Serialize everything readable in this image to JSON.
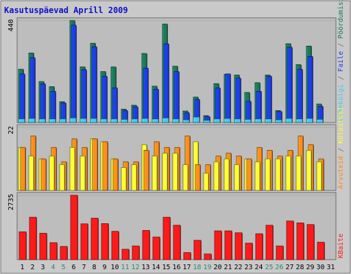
{
  "chart_data": {
    "type": "bar",
    "title": "Kasutuspäevad Aprill 2009",
    "categories": [
      "1",
      "2",
      "3",
      "4",
      "5",
      "6",
      "7",
      "8",
      "9",
      "10",
      "11",
      "12",
      "13",
      "14",
      "15",
      "16",
      "17",
      "18",
      "19",
      "20",
      "21",
      "22",
      "23",
      "24",
      "25",
      "26",
      "27",
      "28",
      "29",
      "30",
      "31"
    ],
    "weekend_days": [
      "4",
      "5",
      "11",
      "12",
      "18",
      "19",
      "25",
      "26"
    ],
    "panels": [
      {
        "name": "top",
        "ymax_label": "440",
        "ylim": [
          0,
          440
        ],
        "series": [
          {
            "name": "Pöördumisi",
            "color": "#1a7a5a",
            "values": [
              230,
              300,
              177,
              155,
              90,
              440,
              240,
              342,
              220,
              240,
              58,
              75,
              298,
              157,
              425,
              243,
              50,
              110,
              30,
              168,
              208,
              205,
              130,
              172,
              205,
              52,
              340,
              250,
              330,
              80,
              0
            ]
          },
          {
            "name": "Faile",
            "color": "#1c3ee6",
            "values": [
              210,
              280,
              167,
              135,
              85,
              420,
              228,
              327,
              200,
              150,
              52,
              68,
              235,
              144,
              340,
              220,
              42,
              100,
              26,
              150,
              210,
              192,
              92,
              135,
              200,
              48,
              325,
              230,
              285,
              70,
              0
            ]
          },
          {
            "name": "Lehekülgi",
            "color": "#47c8ef",
            "values": [
              16,
              18,
              16,
              16,
              16,
              20,
              18,
              18,
              16,
              16,
              14,
              16,
              18,
              16,
              20,
              16,
              12,
              24,
              10,
              16,
              18,
              16,
              14,
              16,
              16,
              12,
              18,
              16,
              18,
              14,
              0
            ]
          }
        ],
        "side_label": [
          "Pöördumisi",
          "Faile",
          "Lehekülgi"
        ]
      },
      {
        "name": "middle",
        "ymax_label": "22",
        "ylim": [
          0,
          22
        ],
        "series": [
          {
            "name": "Külastusi",
            "color": "#ffff33",
            "values": [
              15,
              12,
              11,
              12,
              9,
              15,
              12,
              18,
              17,
              11,
              8,
              9,
              16,
              12,
              13,
              13,
              9,
              17,
              6,
              10,
              11,
              9,
              11,
              10,
              11,
              11,
              12,
              12,
              14,
              10,
              0
            ]
          },
          {
            "name": "Arvuteid",
            "color": "#ff8c1a",
            "values": [
              15,
              19,
              11,
              15,
              10,
              18,
              15,
              18,
              17,
              11,
              10,
              10,
              14,
              17,
              15,
              15,
              19,
              9,
              9,
              12,
              13,
              12,
              11,
              15,
              14,
              12,
              14,
              19,
              16,
              11,
              0
            ]
          }
        ],
        "side_label": [
          "Arvuteid",
          "Külastusi"
        ]
      },
      {
        "name": "bottom",
        "ymax_label": "2735",
        "ylim": [
          0,
          2735
        ],
        "series": [
          {
            "name": "KBaite",
            "color": "#ff1a1a",
            "values": [
              1180,
              1800,
              1120,
              720,
              560,
              2735,
              1520,
              1760,
              1530,
              1200,
              440,
              580,
              1240,
              960,
              1800,
              1460,
              300,
              820,
              240,
              1220,
              1220,
              1140,
              700,
              1100,
              1460,
              580,
              1640,
              1560,
              1490,
              740,
              0
            ]
          }
        ],
        "side_label": [
          "KBaite"
        ]
      }
    ]
  }
}
